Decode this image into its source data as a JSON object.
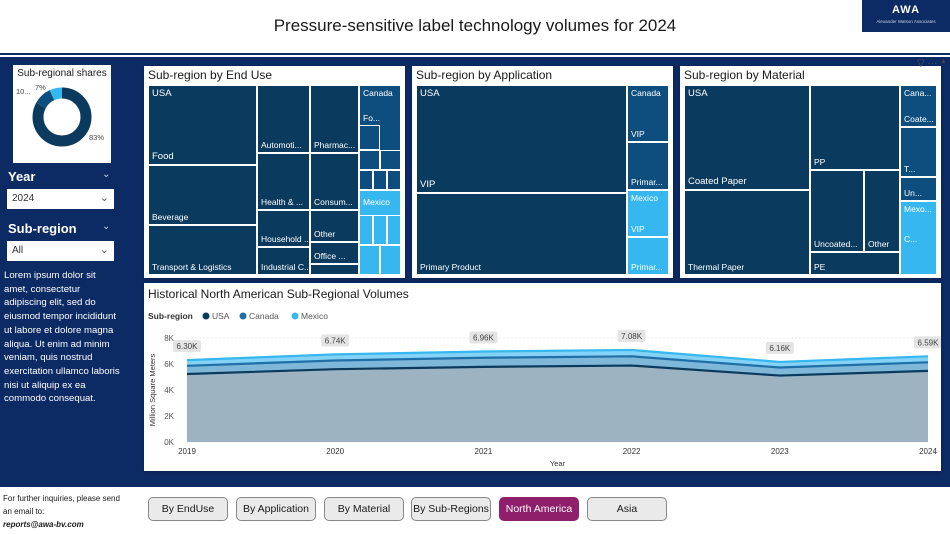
{
  "header": {
    "title": "Pressure-sensitive label technology volumes for 2024",
    "logo_text": "AWA",
    "logo_sub": "Alexander Watson Associates"
  },
  "sidebar": {
    "shares_title": "Sub-regional shares",
    "donut": {
      "slices": [
        {
          "name": "USA",
          "value": 83,
          "label": "83%",
          "color": "#0a3a5e"
        },
        {
          "name": "Canada",
          "value": 10,
          "label": "10...",
          "color": "#0d4e7e"
        },
        {
          "name": "Mexico",
          "value": 7,
          "label": "7%",
          "color": "#36b7f0"
        }
      ]
    },
    "year_label": "Year",
    "year_value": "2024",
    "subregion_label": "Sub-region",
    "subregion_value": "All",
    "lorem": "Lorem ipsum dolor sit amet, consectetur adipiscing elit, sed do eiusmod tempor incididunt ut labore et dolore magna aliqua. Ut enim ad minim veniam, quis nostrud exercitation ullamco laboris nisi ut aliquip ex ea commodo consequat."
  },
  "footer": {
    "line1": "For further inquiries, please send",
    "line2": "an email to:",
    "email": "reports@awa-bv.com"
  },
  "panels": {
    "end_use": {
      "title": "Sub-region by End Use",
      "usa": "USA",
      "food": "Food",
      "beverage": "Beverage",
      "transport": "Transport & Logistics",
      "automotive": "Automoti...",
      "pharma": "Pharmac...",
      "health": "Health & ...",
      "consumer": "Consum...",
      "household": "Household ...",
      "other": "Other",
      "industrial": "Industrial C...",
      "office": "Office ...",
      "canada": "Canada",
      "canada_fo": "Fo...",
      "mexico": "Mexico"
    },
    "application": {
      "title": "Sub-region by Application",
      "usa": "USA",
      "vip": "VIP",
      "primary": "Primary Product",
      "canada": "Canada",
      "canada_vip": "VIP",
      "canada_primary": "Primar...",
      "mexico": "Mexico",
      "mexico_vip": "VIP",
      "mexico_primary": "Primar..."
    },
    "material": {
      "title": "Sub-region by Material",
      "usa": "USA",
      "coated": "Coated Paper",
      "thermal": "Thermal Paper",
      "pp": "PP",
      "uncoated": "Uncoated...",
      "other": "Other",
      "pe": "PE",
      "canada": "Cana...",
      "canada_coated": "Coate...",
      "canada_t": "T...",
      "canada_un": "Un...",
      "mexico": "Mexo...",
      "mexico_c": "C..."
    }
  },
  "chart": {
    "title": "Historical North American Sub-Regional Volumes",
    "legend_title": "Sub-region"
  },
  "chart_data": {
    "type": "area",
    "title": "Historical North American Sub-Regional Volumes",
    "xlabel": "Year",
    "ylabel": "Million Square Meters",
    "x": [
      2019,
      2020,
      2021,
      2022,
      2023,
      2024
    ],
    "ylim": [
      0,
      8000
    ],
    "yticks": [
      "0K",
      "2K",
      "4K",
      "6K",
      "8K"
    ],
    "series": [
      {
        "name": "USA",
        "color": "#0a3a5e",
        "values": [
          5230,
          5600,
          5780,
          5880,
          5110,
          5470
        ]
      },
      {
        "name": "Canada",
        "color": "#1f6fa8",
        "values": [
          630,
          670,
          700,
          710,
          620,
          660
        ]
      },
      {
        "name": "Mexico",
        "color": "#36b7f0",
        "values": [
          440,
          470,
          480,
          490,
          430,
          460
        ]
      }
    ],
    "totals": [
      6300,
      6740,
      6960,
      7080,
      6160,
      6590
    ],
    "total_labels": [
      "6.30K",
      "6.74K",
      "6.96K",
      "7.08K",
      "6.16K",
      "6.59K"
    ]
  },
  "nav": {
    "buttons": [
      "By EndUse",
      "By Application",
      "By Material",
      "By Sub-Regions",
      "North America",
      "Asia"
    ],
    "active": "North America"
  }
}
